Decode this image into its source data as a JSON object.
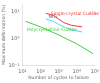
{
  "chart_data": {
    "type": "line",
    "xlabel": "Number of cycles to failure",
    "ylabel": "Maximum deformation (%)",
    "log": true,
    "grid": false,
    "xlim": [
      10,
      100000
    ],
    "ylim": [
      0.1,
      20
    ],
    "xticks": [
      {
        "value": 10,
        "label": "10¹"
      },
      {
        "value": 100,
        "label": "10²"
      },
      {
        "value": 1000,
        "label": "10³"
      },
      {
        "value": 10000,
        "label": "10⁴"
      },
      {
        "value": 100000,
        "label": "10⁵"
      }
    ],
    "yticks": [
      {
        "value": 0.1,
        "label": "10⁻¹"
      },
      {
        "value": 1,
        "label": "10⁰"
      },
      {
        "value": 10,
        "label": "10¹"
      }
    ],
    "series": [
      {
        "color": "#ff3333",
        "x": [
          200,
          500,
          1000,
          2000,
          5000,
          20000
        ],
        "values": [
          9.0,
          7.5,
          5.5,
          4.0,
          3.2,
          2.8
        ]
      },
      {
        "color": "#44ddff",
        "x": [
          200,
          500,
          1000,
          2000,
          5000,
          20000
        ],
        "values": [
          5.5,
          4.5,
          3.5,
          2.8,
          2.2,
          1.8
        ]
      },
      {
        "color": "#44cc44",
        "x": [
          15,
          100,
          1000,
          10000,
          80000
        ],
        "values": [
          4.5,
          2.8,
          1.4,
          0.65,
          0.28
        ]
      }
    ],
    "annotations": [
      {
        "text": "Single-crystal CuAlBe",
        "x": 2500,
        "y": 8.5,
        "color": "#ff3333"
      },
      {
        "text": "NiTi",
        "x": 280,
        "y": 6.5,
        "color": "#555555"
      },
      {
        "text": "Polycrystalline CuAlBe",
        "x": 18,
        "y": 2.2,
        "color": "#44cc44"
      }
    ]
  }
}
